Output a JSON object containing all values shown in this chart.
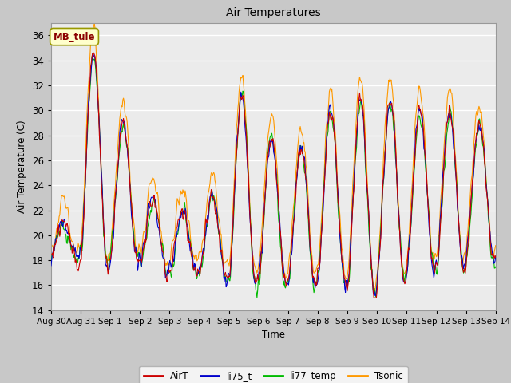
{
  "title": "Air Temperatures",
  "xlabel": "Time",
  "ylabel": "Air Temperature (C)",
  "ylim": [
    14,
    37
  ],
  "yticks": [
    14,
    16,
    18,
    20,
    22,
    24,
    26,
    28,
    30,
    32,
    34,
    36
  ],
  "n_days": 15,
  "xtick_labels": [
    "Aug 30",
    "Aug 31",
    "Sep 1",
    "Sep 2",
    "Sep 3",
    "Sep 4",
    "Sep 5",
    "Sep 6",
    "Sep 7",
    "Sep 8",
    "Sep 9",
    "Sep 10",
    "Sep 11",
    "Sep 12",
    "Sep 13",
    "Sep 14"
  ],
  "colors": {
    "AirT": "#cc0000",
    "li75_t": "#0000cc",
    "li77_temp": "#00bb00",
    "Tsonic": "#ff9900"
  },
  "legend_label": "MB_tule",
  "plot_bg_color": "#ebebeb",
  "fig_bg_color": "#c8c8c8",
  "grid_color": "#ffffff",
  "series_linewidth": 0.8
}
